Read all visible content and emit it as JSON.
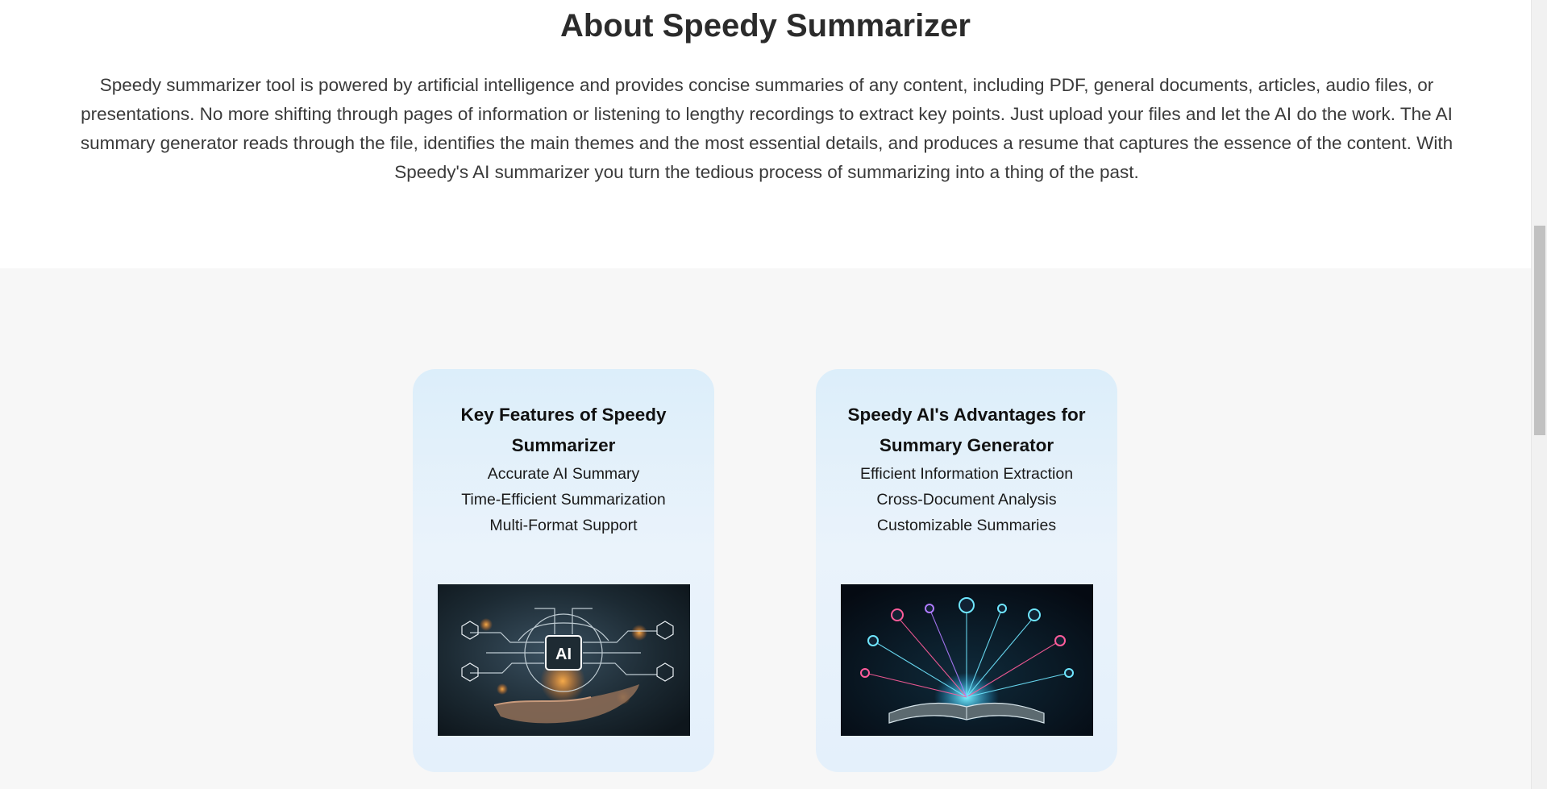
{
  "about": {
    "title": "About Speedy Summarizer",
    "body": "Speedy summarizer tool is powered by artificial intelligence and provides concise summaries of any content, including PDF, general documents, articles, audio files, or presentations. No more shifting through pages of information or listening to lengthy recordings to extract key points. Just upload your files and let the AI do the work. The AI summary generator reads through the file, identifies the main themes and the most essential details, and produces a resume that captures the essence of the content. With Speedy's AI summarizer you turn the tedious process of summarizing into a thing of the past."
  },
  "cards": [
    {
      "title": "Key Features of Speedy Summarizer",
      "items": [
        "Accurate AI Summary",
        "Time-Efficient Summarization",
        "Multi-Format Support"
      ],
      "image_text": "AI"
    },
    {
      "title": "Speedy AI's Advantages for Summary Generator",
      "items": [
        "Efficient Information Extraction",
        "Cross-Document Analysis",
        "Customizable Summaries"
      ]
    }
  ],
  "colors": {
    "section_bg": "#f7f7f7",
    "card_bg": "#dceefa",
    "heading": "#2b2b2b",
    "body_text": "#3a3a3a"
  }
}
